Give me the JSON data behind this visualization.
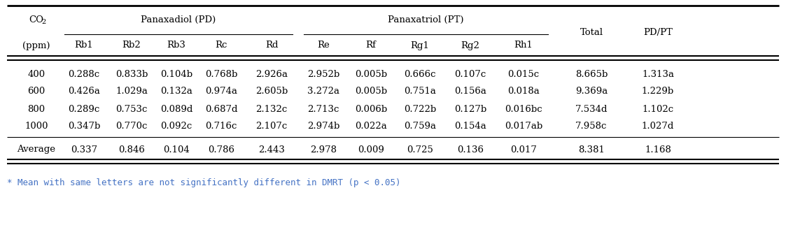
{
  "pd_header": "Panaxadiol (PD)",
  "pt_header": "Panaxatriol (PT)",
  "pd_cols": [
    "Rb1",
    "Rb2",
    "Rb3",
    "Rc",
    "Rd"
  ],
  "pt_cols": [
    "Re",
    "Rf",
    "Rg1",
    "Rg2",
    "Rh1"
  ],
  "extra_cols": [
    "Total",
    "PD/PT"
  ],
  "rows": [
    [
      "400",
      "0.288c",
      "0.833b",
      "0.104b",
      "0.768b",
      "2.926a",
      "2.952b",
      "0.005b",
      "0.666c",
      "0.107c",
      "0.015c",
      "8.665b",
      "1.313a"
    ],
    [
      "600",
      "0.426a",
      "1.029a",
      "0.132a",
      "0.974a",
      "2.605b",
      "3.272a",
      "0.005b",
      "0.751a",
      "0.156a",
      "0.018a",
      "9.369a",
      "1.229b"
    ],
    [
      "800",
      "0.289c",
      "0.753c",
      "0.089d",
      "0.687d",
      "2.132c",
      "2.713c",
      "0.006b",
      "0.722b",
      "0.127b",
      "0.016bc",
      "7.534d",
      "1.102c"
    ],
    [
      "1000",
      "0.347b",
      "0.770c",
      "0.092c",
      "0.716c",
      "2.107c",
      "2.974b",
      "0.022a",
      "0.759a",
      "0.154a",
      "0.017ab",
      "7.958c",
      "1.027d"
    ]
  ],
  "avg_row": [
    "Average",
    "0.337",
    "0.846",
    "0.104",
    "0.786",
    "2.443",
    "2.978",
    "0.009",
    "0.725",
    "0.136",
    "0.017",
    "8.381",
    "1.168"
  ],
  "footnote": "* Mean with same letters are not significantly different in DMRT (p < 0.05)",
  "footnote_color": "#4472C4",
  "bg_color": "#ffffff",
  "text_color": "#000000",
  "font_size": 9.5,
  "header_font_size": 9.5
}
